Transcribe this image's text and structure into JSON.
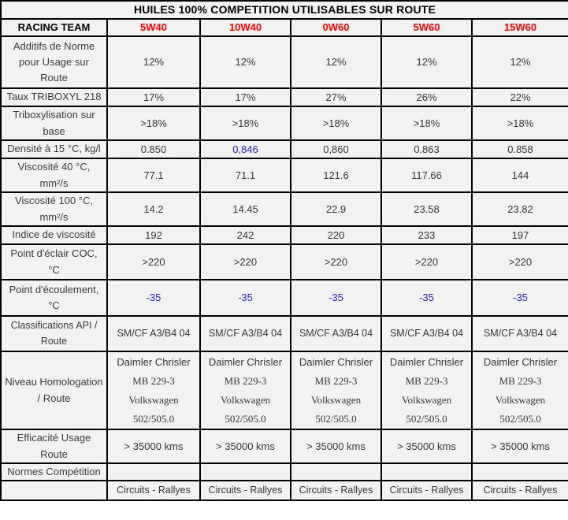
{
  "title": "HUILES 100% COMPETITION UTILISABLES SUR ROUTE",
  "colors": {
    "grade_red": "#fe0000",
    "highlight_blue": "#2222cc",
    "border_black": "#000000",
    "cell_background": "#f2f2f2",
    "text": "#363636"
  },
  "table": {
    "header": {
      "label": "RACING TEAM",
      "grades": [
        "5W40",
        "10W40",
        "0W60",
        "5W60",
        "15W60"
      ]
    },
    "rows": [
      {
        "label": "Additifs de Norme pour Usage sur Route",
        "values": [
          "12%",
          "12%",
          "12%",
          "12%",
          "12%"
        ]
      },
      {
        "label": "Taux TRIBOXYL 218",
        "values": [
          "17%",
          "17%",
          "27%",
          "26%",
          "22%"
        ]
      },
      {
        "label": "Triboxylisation sur base",
        "values": [
          ">18%",
          ">18%",
          ">18%",
          ">18%",
          ">18%"
        ]
      },
      {
        "label": "Densité à 15 °C, kg/l",
        "values": [
          "0.850",
          "0,846",
          "0,860",
          "0.863",
          "0.858"
        ],
        "blue": [
          false,
          true,
          false,
          false,
          false
        ]
      },
      {
        "label": "Viscosité 40 °C, mm²/s",
        "values": [
          "77.1",
          "71.1",
          "121.6",
          "117.66",
          "144"
        ]
      },
      {
        "label": "Viscosité 100 °C, mm²/s",
        "values": [
          "14.2",
          "14.45",
          "22.9",
          "23.58",
          "23.82"
        ]
      },
      {
        "label": "Indice de viscosité",
        "values": [
          "192",
          "242",
          "220",
          "233",
          "197"
        ]
      },
      {
        "label": "Point d'éclair COC, °C",
        "values": [
          ">220",
          ">220",
          ">220",
          ">220",
          ">220"
        ]
      },
      {
        "label": "Point d'écoulement, °C",
        "values": [
          "-35",
          "-35",
          "-35",
          "-35",
          "-35"
        ],
        "blue": [
          true,
          true,
          true,
          true,
          true
        ]
      },
      {
        "label": "Classifications API / Route",
        "values": [
          "SM/CF A3/B4 04",
          "SM/CF A3/B4 04",
          "SM/CF A3/B4 04",
          "SM/CF A3/B4 04",
          "SM/CF A3/B4 04"
        ]
      },
      {
        "label": "Niveau Homologation / Route",
        "values": [
          [
            "Daimler Chrisler",
            "MB 229-3",
            "Volkswagen",
            "502/505.0"
          ],
          [
            "Daimler Chrisler",
            "MB 229-3",
            "Volkswagen",
            "502/505.0"
          ],
          [
            "Daimler Chrisler",
            "MB 229-3",
            "Volkswagen",
            "502/505.0"
          ],
          [
            "Daimler Chrisler",
            "MB 229-3",
            "Volkswagen",
            "502/505.0"
          ],
          [
            "Daimler Chrisler",
            "MB 229-3",
            "Volkswagen",
            "502/505.0"
          ]
        ]
      },
      {
        "label": "Efficacité Usage Route",
        "values": [
          "> 35000 kms",
          "> 35000 kms",
          "> 35000 kms",
          "> 35000 kms",
          "> 35000 kms"
        ]
      },
      {
        "label": "Normes Compétition",
        "values": [
          "",
          "",
          "",
          "",
          ""
        ]
      },
      {
        "label": "",
        "values": [
          "Circuits - Rallyes",
          "Circuits - Rallyes",
          "Circuits - Rallyes",
          "Circuits - Rallyes",
          "Circuits - Rallyes"
        ]
      }
    ]
  },
  "chart_data": {
    "type": "table",
    "title": "HUILES 100% COMPETITION UTILISABLES SUR ROUTE",
    "columns": [
      "RACING TEAM",
      "5W40",
      "10W40",
      "0W60",
      "5W60",
      "15W60"
    ],
    "rows": [
      [
        "Additifs de Norme pour Usage sur Route",
        "12%",
        "12%",
        "12%",
        "12%",
        "12%"
      ],
      [
        "Taux TRIBOXYL 218",
        "17%",
        "17%",
        "27%",
        "26%",
        "22%"
      ],
      [
        "Triboxylisation sur base",
        ">18%",
        ">18%",
        ">18%",
        ">18%",
        ">18%"
      ],
      [
        "Densité à 15 °C, kg/l",
        "0.850",
        "0,846",
        "0,860",
        "0.863",
        "0.858"
      ],
      [
        "Viscosité 40 °C, mm²/s",
        "77.1",
        "71.1",
        "121.6",
        "117.66",
        "144"
      ],
      [
        "Viscosité 100 °C, mm²/s",
        "14.2",
        "14.45",
        "22.9",
        "23.58",
        "23.82"
      ],
      [
        "Indice de viscosité",
        "192",
        "242",
        "220",
        "233",
        "197"
      ],
      [
        "Point d'éclair COC, °C",
        ">220",
        ">220",
        ">220",
        ">220",
        ">220"
      ],
      [
        "Point d'écoulement, °C",
        "-35",
        "-35",
        "-35",
        "-35",
        "-35"
      ],
      [
        "Classifications API / Route",
        "SM/CF A3/B4 04",
        "SM/CF A3/B4 04",
        "SM/CF A3/B4 04",
        "SM/CF A3/B4 04",
        "SM/CF A3/B4 04"
      ],
      [
        "Niveau Homologation / Route",
        "Daimler Chrisler MB 229-3 Volkswagen 502/505.0",
        "Daimler Chrisler MB 229-3 Volkswagen 502/505.0",
        "Daimler Chrisler MB 229-3 Volkswagen 502/505.0",
        "Daimler Chrisler MB 229-3 Volkswagen 502/505.0",
        "Daimler Chrisler MB 229-3 Volkswagen 502/505.0"
      ],
      [
        "Efficacité Usage Route",
        "> 35000 kms",
        "> 35000 kms",
        "> 35000 kms",
        "> 35000 kms",
        "> 35000 kms"
      ],
      [
        "Normes Compétition",
        "",
        "",
        "",
        "",
        ""
      ],
      [
        "",
        "Circuits - Rallyes",
        "Circuits - Rallyes",
        "Circuits - Rallyes",
        "Circuits - Rallyes",
        "Circuits - Rallyes"
      ]
    ]
  }
}
